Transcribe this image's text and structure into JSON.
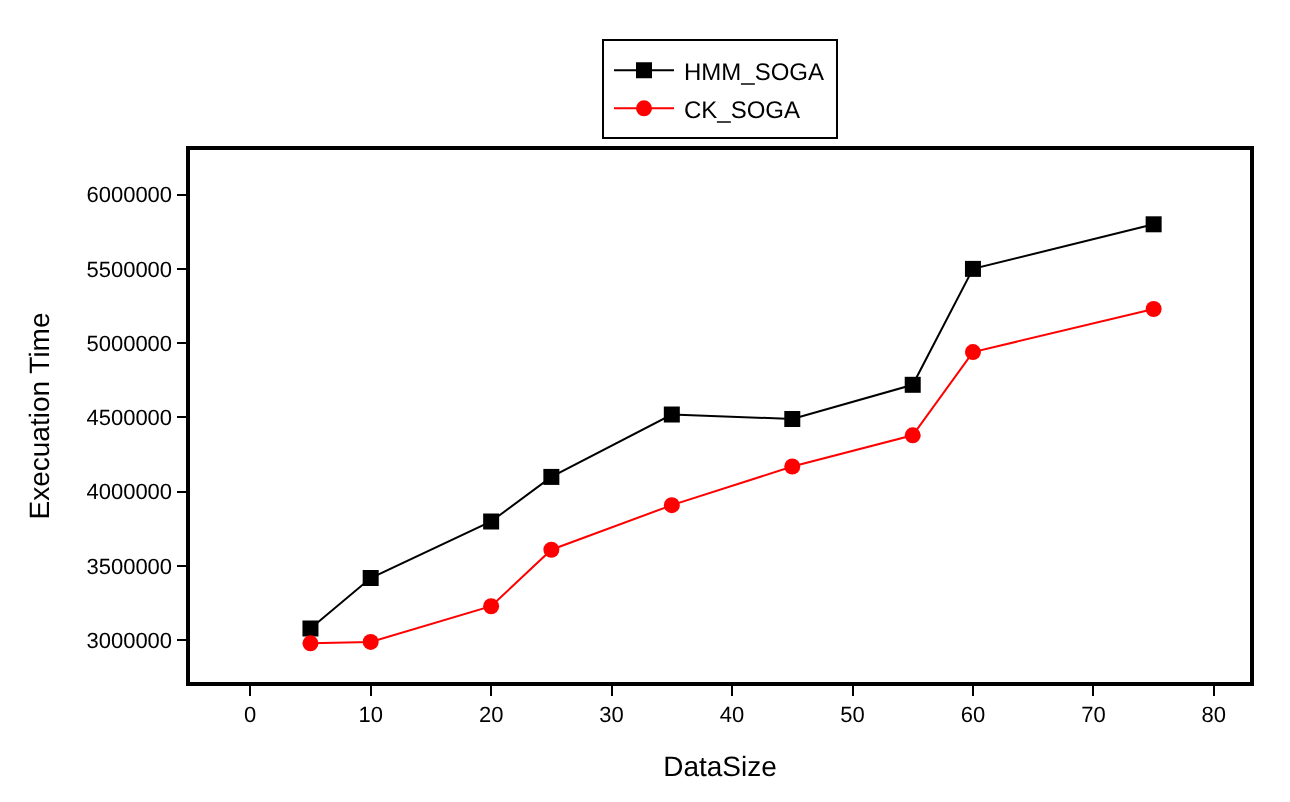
{
  "chart_data": {
    "type": "line",
    "xlabel": "DataSize",
    "ylabel": "Execuation Time",
    "x": [
      5,
      10,
      20,
      25,
      35,
      45,
      55,
      60,
      75
    ],
    "series": [
      {
        "name": "HMM_SOGA",
        "color": "#000000",
        "marker": "square",
        "values": [
          3080000,
          3420000,
          3800000,
          4100000,
          4520000,
          4490000,
          4720000,
          5500000,
          5800000
        ]
      },
      {
        "name": "CK_SOGA",
        "color": "#ff0000",
        "marker": "circle",
        "values": [
          2980000,
          2990000,
          3230000,
          3610000,
          3910000,
          4170000,
          4380000,
          4940000,
          5230000
        ]
      }
    ],
    "xlim": [
      -5,
      83
    ],
    "xticks": [
      0,
      10,
      20,
      30,
      40,
      50,
      60,
      70,
      80
    ],
    "ylim": [
      2720000,
      6300000
    ],
    "yticks": [
      3000000,
      3500000,
      4000000,
      4500000,
      5000000,
      5500000,
      6000000
    ],
    "legend": "top",
    "line_style": "solid"
  }
}
